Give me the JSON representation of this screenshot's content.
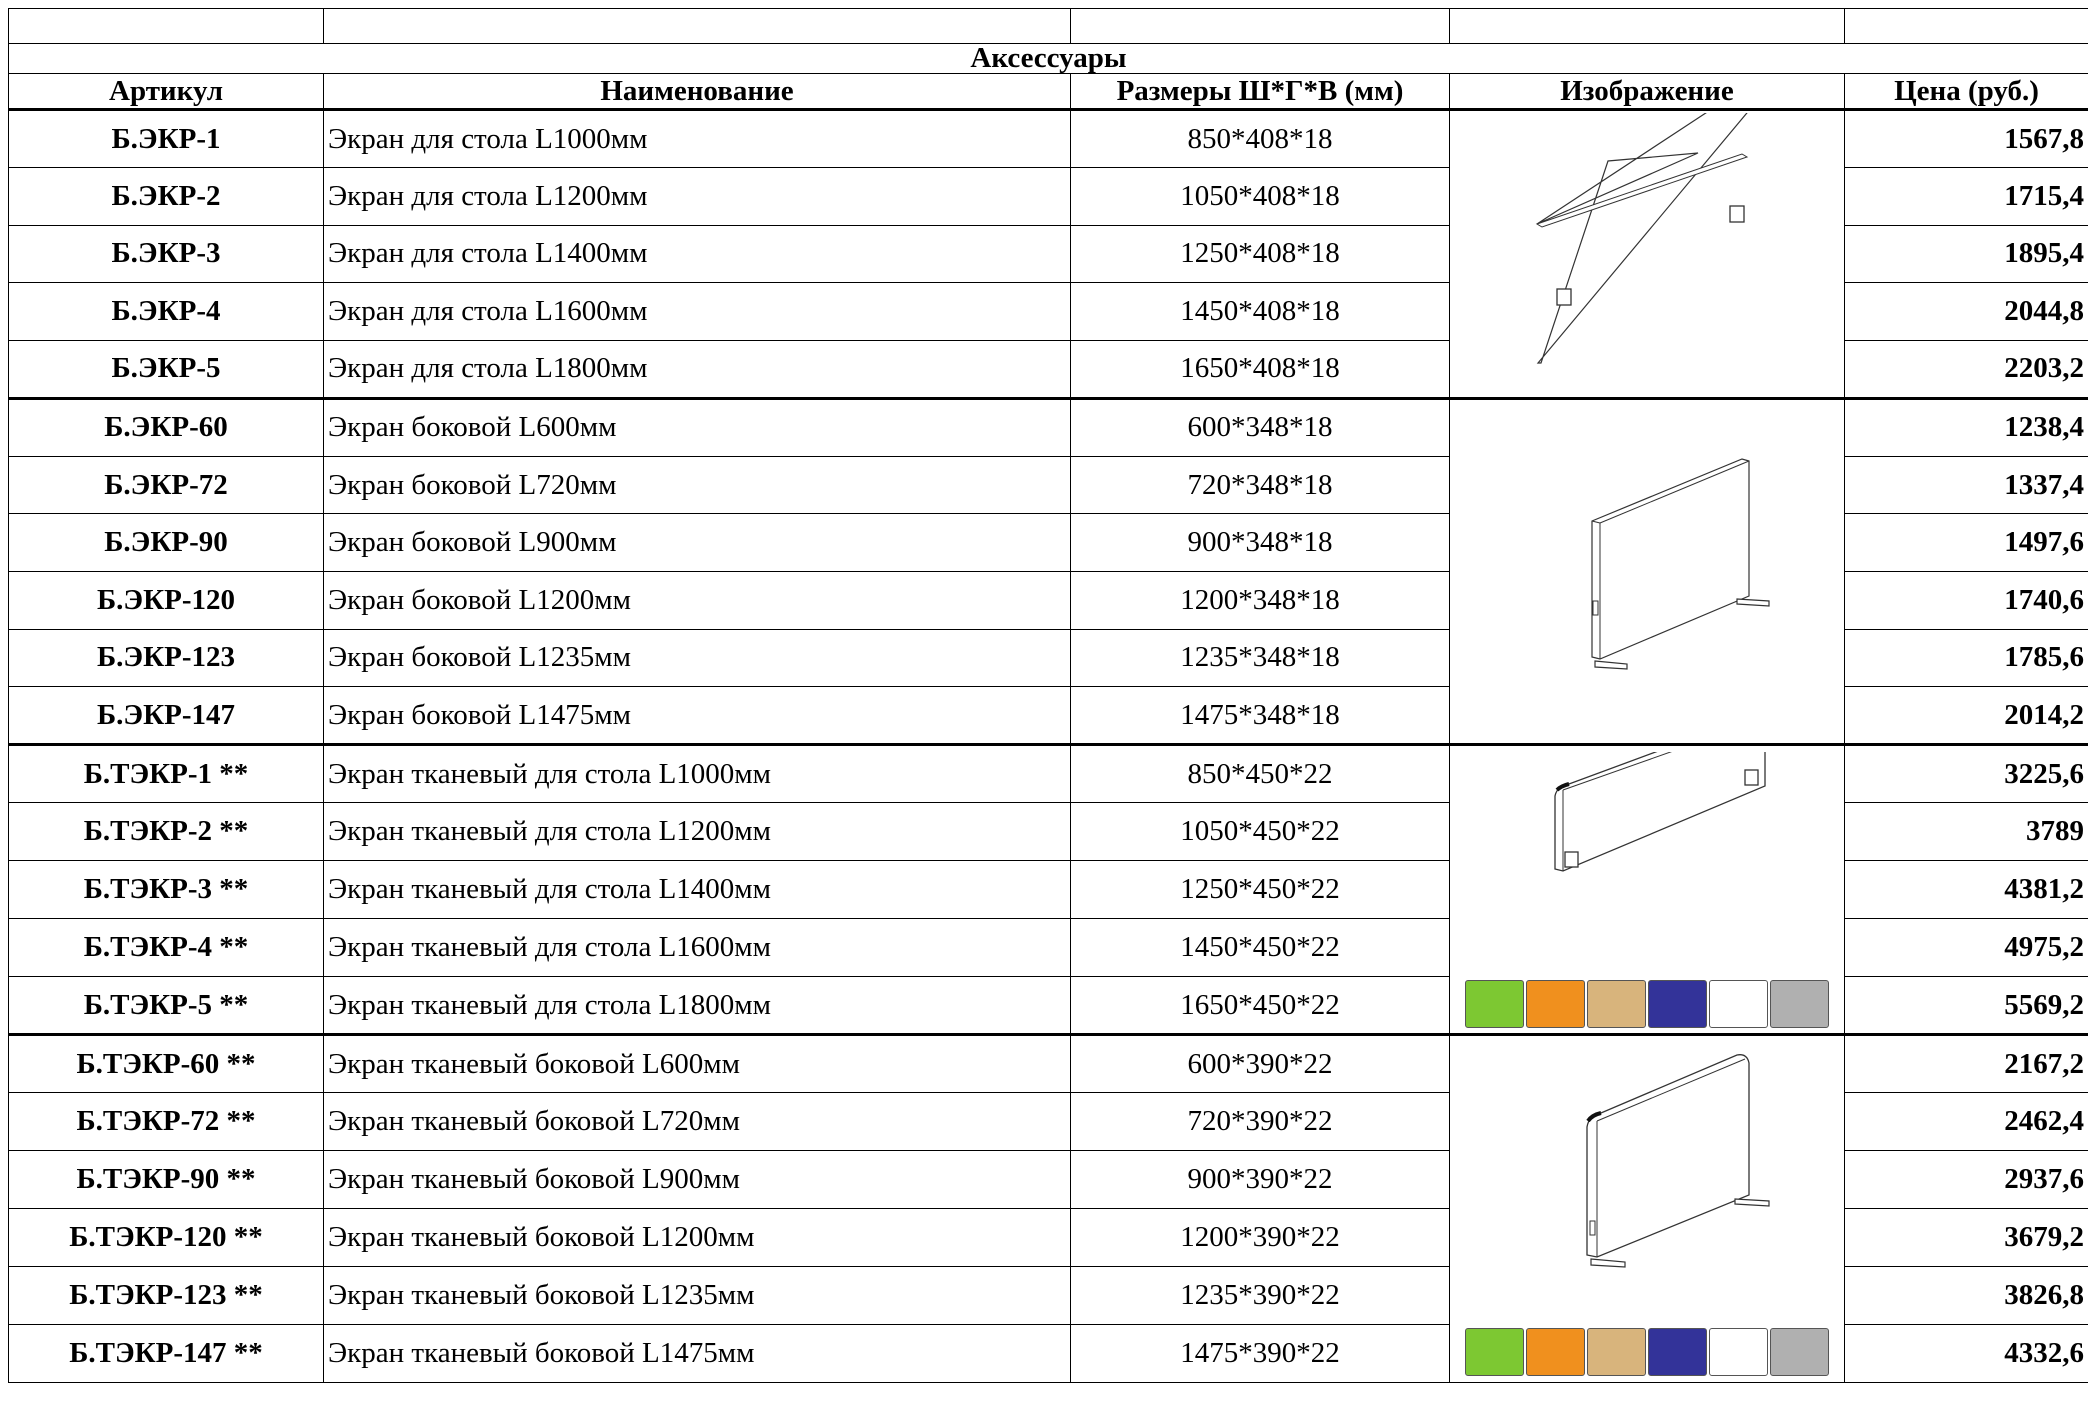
{
  "section_title": "Аксессуары",
  "columns": {
    "sku": "Артикул",
    "name": "Наименование",
    "size": "Размеры Ш*Г*В (мм)",
    "image": "Изображение",
    "price": "Цена (руб.)"
  },
  "groups": [
    {
      "image": "desk-screen-drawing",
      "swatches": false,
      "rows": [
        {
          "sku": "Б.ЭКР-1",
          "name": "Экран для стола L1000мм",
          "size": "850*408*18",
          "price": "1567,8"
        },
        {
          "sku": "Б.ЭКР-2",
          "name": "Экран для стола L1200мм",
          "size": "1050*408*18",
          "price": "1715,4"
        },
        {
          "sku": "Б.ЭКР-3",
          "name": "Экран для стола L1400мм",
          "size": "1250*408*18",
          "price": "1895,4"
        },
        {
          "sku": "Б.ЭКР-4",
          "name": "Экран для стола L1600мм",
          "size": "1450*408*18",
          "price": "2044,8"
        },
        {
          "sku": "Б.ЭКР-5",
          "name": "Экран для стола L1800мм",
          "size": "1650*408*18",
          "price": "2203,2"
        }
      ]
    },
    {
      "image": "side-screen-drawing",
      "swatches": false,
      "rows": [
        {
          "sku": "Б.ЭКР-60",
          "name": "Экран боковой L600мм",
          "size": "600*348*18",
          "price": "1238,4"
        },
        {
          "sku": "Б.ЭКР-72",
          "name": "Экран боковой L720мм",
          "size": "720*348*18",
          "price": "1337,4"
        },
        {
          "sku": "Б.ЭКР-90",
          "name": "Экран боковой L900мм",
          "size": "900*348*18",
          "price": "1497,6"
        },
        {
          "sku": "Б.ЭКР-120",
          "name": "Экран боковой L1200мм",
          "size": "1200*348*18",
          "price": "1740,6"
        },
        {
          "sku": "Б.ЭКР-123",
          "name": "Экран боковой L1235мм",
          "size": "1235*348*18",
          "price": "1785,6"
        },
        {
          "sku": "Б.ЭКР-147",
          "name": "Экран боковой L1475мм",
          "size": "1475*348*18",
          "price": "2014,2"
        }
      ]
    },
    {
      "image": "fabric-desk-screen-drawing",
      "swatches": true,
      "rows": [
        {
          "sku": "Б.ТЭКР-1 **",
          "name": "Экран тканевый для стола L1000мм",
          "size": "850*450*22",
          "price": "3225,6"
        },
        {
          "sku": "Б.ТЭКР-2 **",
          "name": "Экран тканевый для стола L1200мм",
          "size": "1050*450*22",
          "price": "3789"
        },
        {
          "sku": "Б.ТЭКР-3 **",
          "name": "Экран тканевый для стола L1400мм",
          "size": "1250*450*22",
          "price": "4381,2"
        },
        {
          "sku": "Б.ТЭКР-4 **",
          "name": "Экран тканевый для стола L1600мм",
          "size": "1450*450*22",
          "price": "4975,2"
        },
        {
          "sku": "Б.ТЭКР-5 **",
          "name": "Экран тканевый для стола L1800мм",
          "size": "1650*450*22",
          "price": "5569,2"
        }
      ]
    },
    {
      "image": "fabric-side-screen-drawing",
      "swatches": true,
      "rows": [
        {
          "sku": "Б.ТЭКР-60 **",
          "name": "Экран тканевый боковой L600мм",
          "size": "600*390*22",
          "price": "2167,2"
        },
        {
          "sku": "Б.ТЭКР-72 **",
          "name": "Экран тканевый боковой L720мм",
          "size": "720*390*22",
          "price": "2462,4"
        },
        {
          "sku": "Б.ТЭКР-90 **",
          "name": "Экран тканевый боковой L900мм",
          "size": "900*390*22",
          "price": "2937,6"
        },
        {
          "sku": "Б.ТЭКР-120 **",
          "name": "Экран тканевый боковой L1200мм",
          "size": "1200*390*22",
          "price": "3679,2"
        },
        {
          "sku": "Б.ТЭКР-123 **",
          "name": "Экран тканевый боковой L1235мм",
          "size": "1235*390*22",
          "price": "3826,8"
        },
        {
          "sku": "Б.ТЭКР-147 **",
          "name": "Экран тканевый боковой L1475мм",
          "size": "1475*390*22",
          "price": "4332,6"
        }
      ]
    }
  ],
  "fabric_colors": [
    "#7dc832",
    "#f0901e",
    "#d8b47c",
    "#333399",
    "#ffffff",
    "#b0b0b0"
  ]
}
